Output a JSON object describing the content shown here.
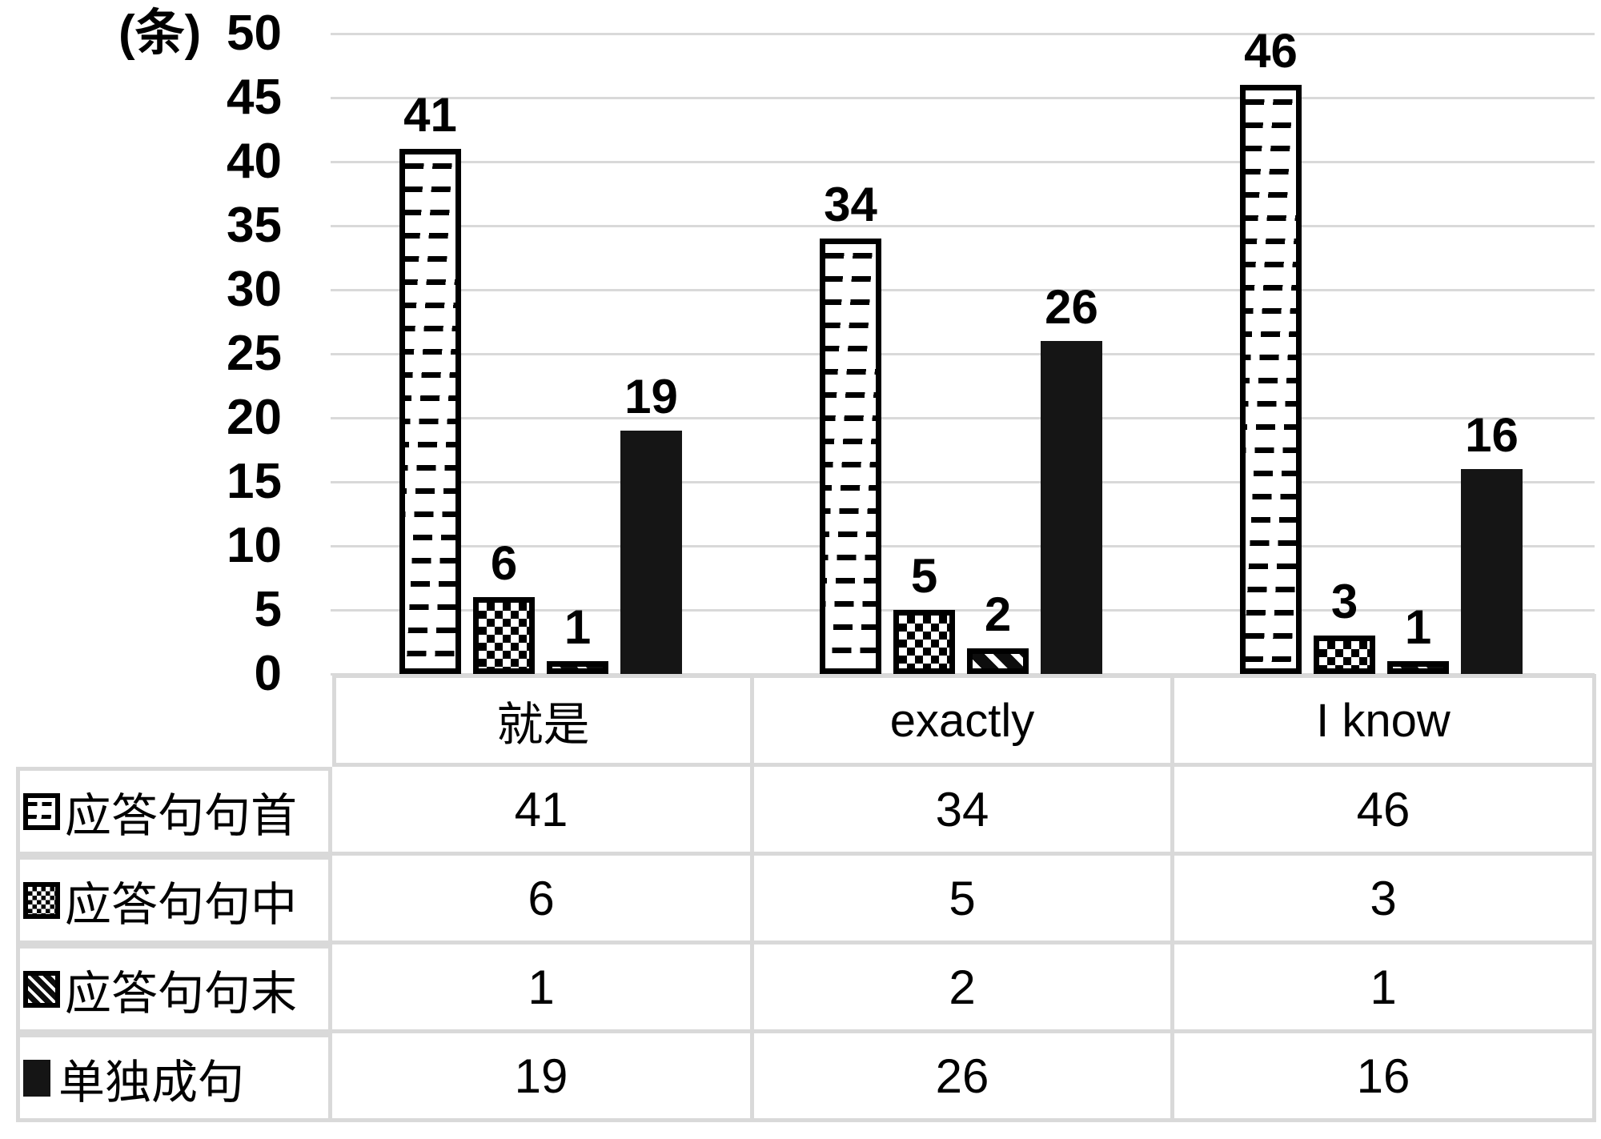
{
  "chart_data": {
    "type": "bar",
    "title": "",
    "unit_label": "(条)",
    "categories": [
      "就是",
      "exactly",
      "I know"
    ],
    "series": [
      {
        "name": "应答句句首",
        "pattern": "dash",
        "values": [
          41,
          34,
          46
        ]
      },
      {
        "name": "应答句句中",
        "pattern": "checker",
        "values": [
          6,
          5,
          3
        ]
      },
      {
        "name": "应答句句末",
        "pattern": "stripe",
        "values": [
          1,
          2,
          1
        ]
      },
      {
        "name": "单独成句",
        "pattern": "solid",
        "values": [
          19,
          26,
          16
        ]
      }
    ],
    "ylim": [
      0,
      50
    ],
    "ytick_step": 5,
    "yticks": [
      50,
      45,
      40,
      35,
      30,
      25,
      20,
      15,
      10,
      5,
      0
    ],
    "grid": true,
    "data_labels_shown": true,
    "legend_position": "data-table-left-column"
  },
  "colors": {
    "bar_black": "#151515",
    "pattern_ink": "#000000",
    "gridline": "#d9d9d9",
    "table_border": "#d9d9d9",
    "text": "#000000",
    "background": "#ffffff"
  }
}
